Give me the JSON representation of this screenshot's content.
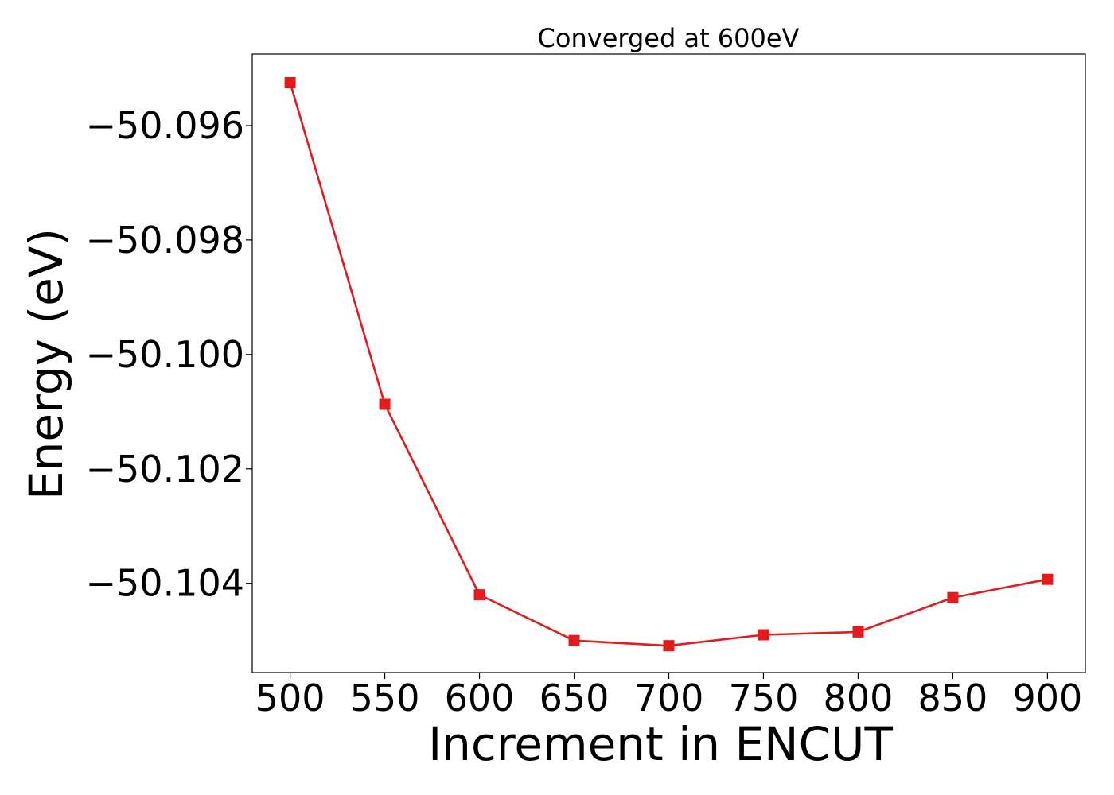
{
  "chart_data": {
    "type": "line",
    "title": "Converged at 600eV",
    "xlabel": "Increment in ENCUT",
    "ylabel": "Energy (eV)",
    "x": [
      500,
      550,
      600,
      650,
      700,
      750,
      800,
      850,
      900
    ],
    "series": [
      {
        "values": [
          -50.09525,
          -50.10087,
          -50.1042,
          -50.105,
          -50.10509,
          -50.1049,
          -50.10485,
          -50.10425,
          -50.10393
        ],
        "color": "#e41a1c",
        "marker": "square"
      }
    ],
    "xticks": [
      500,
      550,
      600,
      650,
      700,
      750,
      800,
      850,
      900
    ],
    "xtick_labels": [
      "500",
      "550",
      "600",
      "650",
      "700",
      "750",
      "800",
      "850",
      "900"
    ],
    "yticks": [
      -50.096,
      -50.098,
      -50.1,
      -50.102,
      -50.104
    ],
    "ytick_labels": [
      "−50.096",
      "−50.098",
      "−50.100",
      "−50.102",
      "−50.104"
    ],
    "xlim": [
      480,
      920
    ],
    "ylim": [
      -50.10556,
      -50.09475
    ],
    "grid": false,
    "legend": "none"
  }
}
